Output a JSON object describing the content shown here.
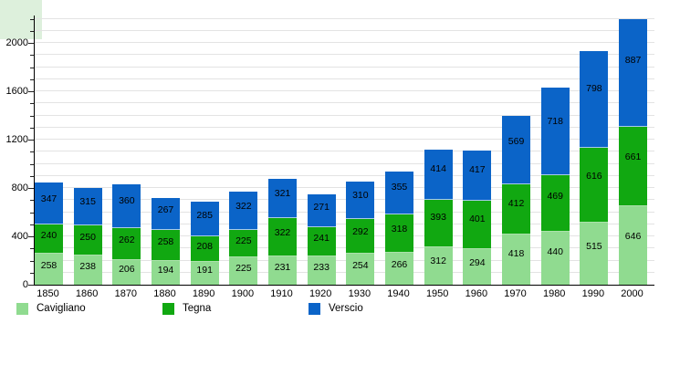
{
  "chart_data": {
    "type": "bar",
    "stacked": true,
    "categories": [
      "1850",
      "1860",
      "1870",
      "1880",
      "1890",
      "1900",
      "1910",
      "1920",
      "1930",
      "1940",
      "1950",
      "1960",
      "1970",
      "1980",
      "1990",
      "2000"
    ],
    "series": [
      {
        "name": "Cavigliano",
        "color": "#90db90",
        "values": [
          258,
          238,
          206,
          194,
          191,
          225,
          231,
          233,
          254,
          266,
          312,
          294,
          418,
          440,
          515,
          646
        ]
      },
      {
        "name": "Tegna",
        "color": "#11a811",
        "values": [
          240,
          250,
          262,
          258,
          208,
          225,
          322,
          241,
          292,
          318,
          393,
          401,
          412,
          469,
          616,
          661
        ]
      },
      {
        "name": "Verscio",
        "color": "#0b64c8",
        "values": [
          347,
          315,
          360,
          267,
          285,
          322,
          321,
          271,
          310,
          355,
          414,
          417,
          569,
          718,
          798,
          887
        ]
      }
    ],
    "y_ticks": [
      0,
      400,
      800,
      1200,
      1600,
      2000
    ],
    "y_minor_step": 100,
    "y_max_line": 2200,
    "ylim": [
      0,
      2230
    ],
    "grid": true,
    "value_labels": true,
    "legend_position": "bottom"
  },
  "legend": {
    "items": [
      {
        "label": "Cavigliano",
        "color": "#90db90"
      },
      {
        "label": "Tegna",
        "color": "#11a811"
      },
      {
        "label": "Verscio",
        "color": "#0b64c8"
      }
    ]
  }
}
